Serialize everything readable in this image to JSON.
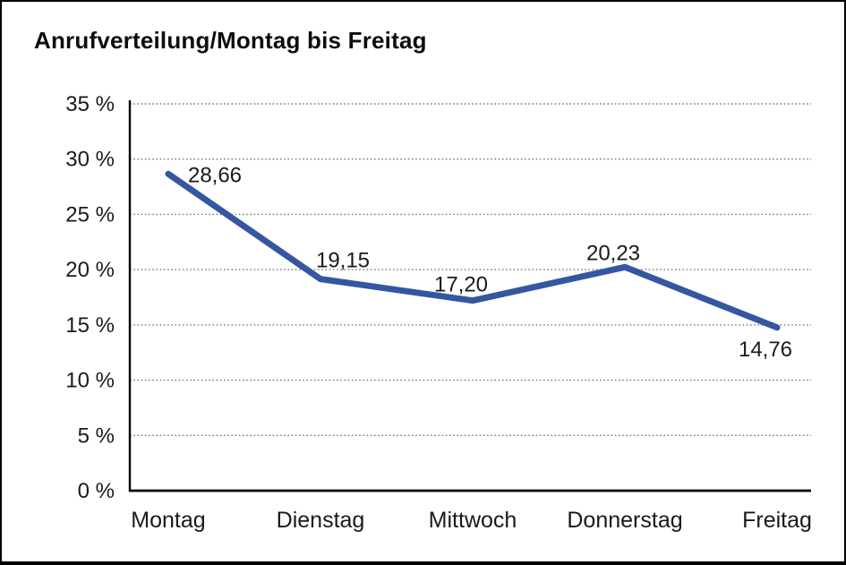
{
  "title": "Anrufverteilung/Montag bis Freitag",
  "colors": {
    "line": "#3556A0",
    "grid": "#777777",
    "axis": "#000000",
    "text": "#1a1a1a",
    "background": "#ffffff",
    "border": "#000000"
  },
  "chart_data": {
    "type": "line",
    "title": "Anrufverteilung/Montag bis Freitag",
    "categories": [
      "Montag",
      "Dienstag",
      "Mittwoch",
      "Donnerstag",
      "Freitag"
    ],
    "values": [
      28.66,
      19.15,
      17.2,
      20.23,
      14.76
    ],
    "point_labels": [
      "28,66",
      "19,15",
      "17,20",
      "20,23",
      "14,76"
    ],
    "series_name": "Anrufverteilung",
    "xlabel": "",
    "ylabel": "",
    "ylim": [
      0,
      35
    ],
    "ytick_step": 5,
    "ytick_labels": [
      "0 %",
      "5 %",
      "10 %",
      "15 %",
      "20 %",
      "25 %",
      "30 %",
      "35 %"
    ],
    "grid": "horizontal-dotted",
    "legend": "none",
    "line_color": "#3556A0",
    "line_width": 7
  }
}
